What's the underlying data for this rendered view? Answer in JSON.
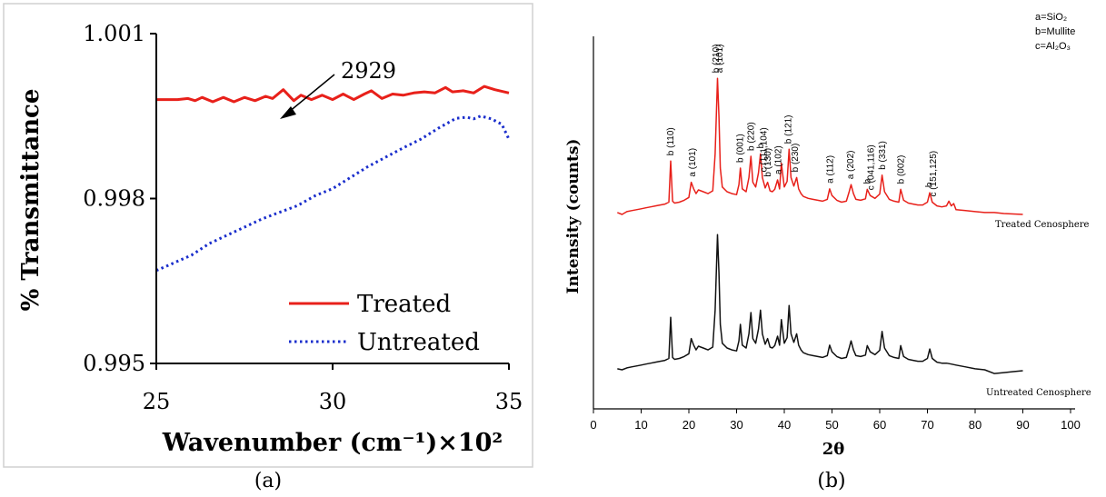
{
  "panels": [
    {
      "caption": "(a)",
      "chart_data": {
        "type": "line",
        "xlabel": "Wavenumber (cm⁻¹)×10²",
        "ylabel": "% Transmittance",
        "xlim": [
          25,
          35
        ],
        "ylim": [
          0.995,
          1.001
        ],
        "xticks": [
          25,
          30,
          35
        ],
        "yticks": [
          0.995,
          0.998,
          1.001
        ],
        "ytick_labels": [
          "0.995",
          "0.998",
          "1.001"
        ],
        "grid": false,
        "legend": "bottom-right",
        "annotations": [
          {
            "text": "2929",
            "x": 28.6,
            "y": 1.0
          }
        ],
        "series": [
          {
            "name": "Treated",
            "color": "#e8201a",
            "style": "solid",
            "x": [
              25.0,
              25.3,
              25.6,
              25.9,
              26.1,
              26.3,
              26.6,
              26.9,
              27.2,
              27.5,
              27.8,
              28.1,
              28.3,
              28.6,
              28.9,
              29.1,
              29.4,
              29.7,
              30.0,
              30.3,
              30.6,
              30.9,
              31.1,
              31.4,
              31.7,
              32.0,
              32.3,
              32.6,
              32.9,
              33.2,
              33.4,
              33.7,
              34.0,
              34.3,
              34.6,
              35.0
            ],
            "values": [
              0.9998,
              0.9998,
              0.9998,
              0.99982,
              0.99978,
              0.99984,
              0.99976,
              0.99984,
              0.99976,
              0.99984,
              0.99978,
              0.99986,
              0.99982,
              0.99998,
              0.99978,
              0.99988,
              0.9998,
              0.99988,
              0.9998,
              0.9999,
              0.9998,
              0.9999,
              0.99996,
              0.99982,
              0.9999,
              0.99988,
              0.99992,
              0.99994,
              0.99992,
              1.00002,
              0.99994,
              0.99996,
              0.99992,
              1.00004,
              0.99998,
              0.99992
            ]
          },
          {
            "name": "Untreated",
            "color": "#1a2ecc",
            "style": "dotted",
            "x": [
              25.0,
              25.5,
              26.0,
              26.5,
              27.0,
              27.5,
              28.0,
              28.5,
              29.0,
              29.5,
              30.0,
              30.5,
              31.0,
              31.5,
              32.0,
              32.5,
              33.0,
              33.5,
              33.8,
              34.0,
              34.2,
              34.5,
              34.8,
              35.0
            ],
            "values": [
              0.99669,
              0.99683,
              0.99697,
              0.99718,
              0.99733,
              0.99748,
              0.99763,
              0.99775,
              0.99787,
              0.99805,
              0.99818,
              0.99838,
              0.99858,
              0.99875,
              0.99892,
              0.99908,
              0.99928,
              0.99946,
              0.99948,
              0.99945,
              0.9995,
              0.99945,
              0.99935,
              0.99908
            ]
          }
        ]
      }
    },
    {
      "caption": "(b)",
      "chart_data": {
        "type": "line",
        "xlabel": "2θ",
        "ylabel": "Intensity (counts)",
        "xlim": [
          0,
          100
        ],
        "xticks": [
          0,
          10,
          20,
          30,
          40,
          50,
          60,
          70,
          80,
          90,
          100
        ],
        "grid": false,
        "legend_lines": [
          "a=SiO₂",
          "b=Mullite",
          "c=Al₂O₃"
        ],
        "series": [
          {
            "name": "Treated Cenosphere",
            "color": "#e8201a",
            "x": [
              5,
              6,
              7,
              8,
              9,
              10,
              11,
              12,
              13,
              14,
              15,
              15.8,
              16.2,
              16.6,
              17,
              18,
              19,
              20,
              20.5,
              21,
              21.5,
              22,
              23,
              24,
              25,
              25.5,
              26,
              26.3,
              26.6,
              27,
              28,
              29,
              30,
              30.5,
              30.8,
              31.2,
              32,
              32.6,
              33,
              33.4,
              34,
              34.6,
              35,
              35.4,
              36,
              36.5,
              37,
              37.5,
              38,
              38.6,
              39,
              39.4,
              40,
              40.6,
              41,
              41.4,
              42,
              42.6,
              43,
              43.5,
              44,
              45,
              46,
              47,
              48,
              49,
              49.5,
              50,
              51,
              52,
              53,
              53.6,
              54,
              54.5,
              55,
              56,
              57,
              57.4,
              58,
              59,
              60,
              60.5,
              61,
              62,
              63,
              64,
              64.4,
              65,
              66,
              67,
              68,
              69,
              70,
              70.5,
              71,
              72,
              73,
              74,
              74.5,
              75,
              75.5,
              76,
              78,
              80,
              82,
              84,
              86,
              88,
              90
            ],
            "values": [
              46,
              42,
              48,
              50,
              52,
              54,
              56,
              58,
              60,
              62,
              64,
              68,
              155,
              70,
              66,
              68,
              72,
              78,
              110,
              96,
              86,
              94,
              90,
              86,
              92,
              170,
              330,
              250,
              140,
              100,
              90,
              86,
              84,
              105,
              140,
              96,
              90,
              120,
              165,
              110,
              100,
              130,
              170,
              120,
              98,
              110,
              92,
              90,
              95,
              115,
              96,
              150,
              100,
              112,
              180,
              120,
              102,
              120,
              96,
              86,
              80,
              76,
              74,
              72,
              70,
              74,
              96,
              82,
              72,
              68,
              70,
              90,
              105,
              86,
              74,
              72,
              75,
              95,
              82,
              76,
              85,
              125,
              90,
              74,
              70,
              68,
              95,
              72,
              66,
              64,
              62,
              62,
              68,
              88,
              68,
              60,
              58,
              60,
              70,
              60,
              65,
              52,
              50,
              48,
              46,
              46,
              44,
              43,
              42
            ]
          },
          {
            "name": "Untreated Cenosphere",
            "color": "#111111",
            "x": [
              5,
              6,
              7,
              8,
              9,
              10,
              11,
              12,
              13,
              14,
              15,
              15.8,
              16.2,
              16.6,
              17,
              18,
              19,
              20,
              20.5,
              21,
              21.5,
              22,
              23,
              24,
              25,
              25.5,
              26,
              26.3,
              26.6,
              27,
              28,
              29,
              30,
              30.5,
              30.8,
              31.2,
              32,
              32.6,
              33,
              33.4,
              34,
              34.6,
              35,
              35.4,
              36,
              36.5,
              37,
              37.5,
              38,
              38.6,
              39,
              39.4,
              40,
              40.6,
              41,
              41.4,
              42,
              42.6,
              43,
              43.5,
              44,
              45,
              46,
              47,
              48,
              49,
              49.5,
              50,
              51,
              52,
              53,
              53.6,
              54,
              54.5,
              55,
              56,
              57,
              57.4,
              58,
              59,
              60,
              60.5,
              61,
              62,
              63,
              64,
              64.4,
              65,
              66,
              67,
              68,
              69,
              70,
              70.5,
              71,
              72,
              73,
              74,
              75,
              76,
              78,
              80,
              82,
              84,
              86,
              88,
              90
            ],
            "values": [
              46,
              44,
              48,
              50,
              52,
              54,
              56,
              58,
              60,
              62,
              64,
              68,
              155,
              70,
              66,
              68,
              72,
              78,
              110,
              96,
              86,
              94,
              90,
              86,
              92,
              170,
              330,
              250,
              140,
              100,
              90,
              86,
              84,
              105,
              140,
              96,
              90,
              120,
              165,
              110,
              100,
              130,
              170,
              120,
              98,
              110,
              92,
              90,
              95,
              115,
              96,
              150,
              100,
              112,
              180,
              120,
              102,
              120,
              96,
              86,
              80,
              76,
              74,
              72,
              70,
              74,
              96,
              82,
              72,
              68,
              70,
              90,
              105,
              86,
              74,
              72,
              75,
              95,
              82,
              76,
              85,
              125,
              90,
              74,
              70,
              68,
              95,
              72,
              66,
              64,
              62,
              62,
              68,
              88,
              68,
              60,
              58,
              58,
              56,
              54,
              50,
              46,
              44,
              36,
              38,
              40,
              42
            ]
          }
        ],
        "series_labels": [
          {
            "text": "Treated Cenosphere",
            "series": 0
          },
          {
            "text": "Untreated Cenosphere",
            "series": 1
          }
        ],
        "peak_labels": [
          {
            "x": 16.2,
            "phase": "b",
            "hkl": "(110)"
          },
          {
            "x": 20.8,
            "phase": "a",
            "hkl": "(101)"
          },
          {
            "x": 25.7,
            "phase": "b",
            "hkl": "(210)"
          },
          {
            "x": 26.5,
            "phase": "a",
            "hkl": "(101)"
          },
          {
            "x": 30.8,
            "phase": "b",
            "hkl": "(001)"
          },
          {
            "x": 33.0,
            "phase": "b",
            "hkl": "(220)"
          },
          {
            "x": 35.0,
            "phase": "b",
            "hkl": ""
          },
          {
            "x": 35.7,
            "phase": "c",
            "hkl": "(111,104)"
          },
          {
            "x": 36.6,
            "phase": "b",
            "hkl": "(130)"
          },
          {
            "x": 38.8,
            "phase": "a",
            "hkl": "(102)"
          },
          {
            "x": 40.9,
            "phase": "b",
            "hkl": "(121)"
          },
          {
            "x": 42.3,
            "phase": "b",
            "hkl": "(230)"
          },
          {
            "x": 49.6,
            "phase": "a",
            "hkl": "(112)"
          },
          {
            "x": 53.9,
            "phase": "a",
            "hkl": "(202)"
          },
          {
            "x": 57.4,
            "phase": "b",
            "hkl": ""
          },
          {
            "x": 58.2,
            "phase": "c",
            "hkl": "(041,116)"
          },
          {
            "x": 60.6,
            "phase": "b",
            "hkl": "(331)"
          },
          {
            "x": 64.5,
            "phase": "b",
            "hkl": "(002)"
          },
          {
            "x": 70.4,
            "phase": "b",
            "hkl": ""
          },
          {
            "x": 71.2,
            "phase": "c",
            "hkl": "(151,125)"
          }
        ]
      }
    }
  ]
}
